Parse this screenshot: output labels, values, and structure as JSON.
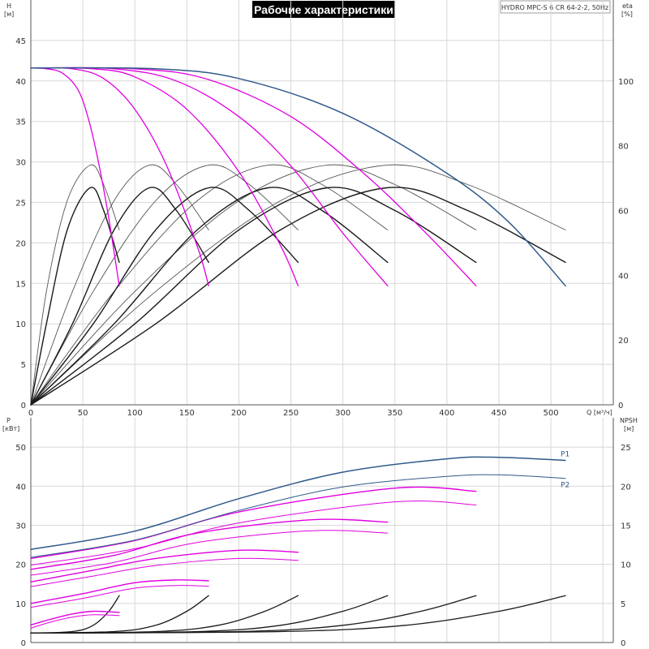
{
  "chart_data": {
    "type": "line",
    "title": "Рабочие характеристики",
    "model": "HYDRO MPC-S 6 CR 64-2-2, 50Hz",
    "colors": {
      "max_curve": "#2e5a8a",
      "speed_curves": "#e000e0",
      "efficiency_curves": "#1a1a1a",
      "efficiency_thin": "#555555",
      "npsh_curves": "#1a1a1a"
    },
    "x_axis": {
      "label": "Q [м³/ч]",
      "range": [
        0,
        560
      ],
      "ticks": [
        0,
        50,
        100,
        150,
        200,
        250,
        300,
        350,
        400,
        450,
        500
      ]
    },
    "head_panel": {
      "y_axis": {
        "label": "H",
        "unit": "[м]",
        "range": [
          0,
          50
        ],
        "ticks": [
          0,
          5,
          10,
          15,
          20,
          25,
          30,
          35,
          40,
          45
        ]
      },
      "eta_axis": {
        "label": "eta",
        "unit": "[%]",
        "range": [
          0,
          125
        ],
        "ticks": [
          0,
          20,
          40,
          60,
          80,
          100
        ]
      },
      "speed_curves": [
        {
          "x": [
            0,
            15,
            30,
            45,
            55,
            65,
            75,
            85
          ],
          "y": [
            41.6,
            41.5,
            41,
            39,
            35.5,
            30,
            23,
            14.7
          ]
        },
        {
          "x": [
            0,
            40,
            70,
            100,
            130,
            160,
            171
          ],
          "y": [
            41.6,
            41.5,
            40.3,
            36.5,
            29.7,
            19.6,
            14.7
          ]
        },
        {
          "x": [
            0,
            60,
            100,
            150,
            200,
            240,
            257
          ],
          "y": [
            41.6,
            41.5,
            40.5,
            36.5,
            28.8,
            19.7,
            14.7
          ]
        },
        {
          "x": [
            0,
            80,
            140,
            200,
            250,
            300,
            343
          ],
          "y": [
            41.6,
            41.5,
            40,
            35.6,
            29.5,
            21.2,
            14.7
          ]
        },
        {
          "x": [
            0,
            100,
            170,
            250,
            320,
            380,
            428
          ],
          "y": [
            41.6,
            41.5,
            40.2,
            35.6,
            28.6,
            21.2,
            14.7
          ]
        }
      ],
      "max_curve": {
        "x": [
          0,
          120,
          200,
          300,
          400,
          460,
          514
        ],
        "y": [
          41.6,
          41.5,
          40.3,
          36,
          28.6,
          22.5,
          14.7
        ]
      },
      "efficiency_bold": [
        {
          "x": [
            0,
            15,
            35,
            57,
            70,
            85
          ],
          "eta": [
            0,
            25,
            54,
            67,
            60,
            44
          ]
        },
        {
          "x": [
            0,
            40,
            80,
            114,
            140,
            171
          ],
          "eta": [
            0,
            25,
            54,
            67,
            60,
            44
          ]
        },
        {
          "x": [
            0,
            60,
            120,
            171,
            210,
            257
          ],
          "eta": [
            0,
            25,
            54,
            67,
            60,
            44
          ]
        },
        {
          "x": [
            0,
            80,
            160,
            228,
            280,
            343
          ],
          "eta": [
            0,
            25,
            54,
            67,
            60,
            44
          ]
        },
        {
          "x": [
            0,
            100,
            200,
            285,
            350,
            428
          ],
          "eta": [
            0,
            25,
            54,
            67,
            60,
            44
          ]
        },
        {
          "x": [
            0,
            120,
            240,
            342,
            420,
            514
          ],
          "eta": [
            0,
            25,
            54,
            67,
            60,
            44
          ]
        }
      ],
      "efficiency_thin": [
        {
          "x": [
            0,
            15,
            35,
            57,
            70,
            85
          ],
          "eta": [
            0,
            35,
            63,
            74,
            68,
            54
          ]
        },
        {
          "x": [
            0,
            40,
            80,
            114,
            140,
            171
          ],
          "eta": [
            0,
            35,
            63,
            74,
            68,
            54
          ]
        },
        {
          "x": [
            0,
            60,
            120,
            171,
            210,
            257
          ],
          "eta": [
            0,
            35,
            63,
            74,
            68,
            54
          ]
        },
        {
          "x": [
            0,
            80,
            160,
            228,
            280,
            343
          ],
          "eta": [
            0,
            35,
            63,
            74,
            68,
            54
          ]
        },
        {
          "x": [
            0,
            100,
            200,
            285,
            350,
            428
          ],
          "eta": [
            0,
            35,
            63,
            74,
            68,
            54
          ]
        },
        {
          "x": [
            0,
            120,
            240,
            342,
            420,
            514
          ],
          "eta": [
            0,
            35,
            63,
            74,
            68,
            54
          ]
        }
      ]
    },
    "power_panel": {
      "y_axis": {
        "label": "P",
        "unit": "[кВт]",
        "range": [
          0,
          57.5
        ],
        "ticks": [
          0,
          10,
          20,
          30,
          40,
          50
        ]
      },
      "npsh_axis": {
        "label": "NPSH",
        "unit": "[м]",
        "range": [
          0,
          28.75
        ],
        "ticks": [
          0,
          5,
          10,
          15,
          20,
          25
        ]
      },
      "p1_label": "P1",
      "p2_label": "P2",
      "P1": {
        "x": [
          0,
          100,
          200,
          300,
          400,
          450,
          514
        ],
        "y": [
          23.8,
          28.5,
          36.8,
          43.6,
          47,
          47.4,
          46.6
        ]
      },
      "P2": {
        "x": [
          0,
          100,
          200,
          300,
          400,
          450,
          514
        ],
        "y": [
          21.8,
          26.2,
          33.8,
          39.8,
          42.5,
          42.9,
          42
        ]
      },
      "speed_P1": [
        {
          "x": [
            0,
            20,
            40,
            60,
            85
          ],
          "y": [
            4.5,
            6,
            7.3,
            8,
            7.7
          ]
        },
        {
          "x": [
            0,
            50,
            100,
            140,
            171
          ],
          "y": [
            10,
            12.5,
            15.3,
            16,
            15.8
          ]
        },
        {
          "x": [
            0,
            60,
            120,
            200,
            257
          ],
          "y": [
            15.5,
            18.5,
            21.5,
            23.6,
            23.1
          ]
        },
        {
          "x": [
            0,
            80,
            160,
            270,
            343
          ],
          "y": [
            18.7,
            22.3,
            28,
            31.4,
            30.8
          ]
        },
        {
          "x": [
            0,
            100,
            200,
            350,
            428
          ],
          "y": [
            21.5,
            26.1,
            33.4,
            39.5,
            38.7
          ]
        }
      ],
      "speed_P2": [
        {
          "x": [
            0,
            20,
            40,
            60,
            85
          ],
          "y": [
            3.7,
            5.3,
            6.5,
            7.1,
            6.9
          ]
        },
        {
          "x": [
            0,
            50,
            100,
            140,
            171
          ],
          "y": [
            9,
            11.3,
            13.9,
            14.6,
            14.4
          ]
        },
        {
          "x": [
            0,
            60,
            120,
            200,
            257
          ],
          "y": [
            14.3,
            17,
            19.7,
            21.5,
            21
          ]
        },
        {
          "x": [
            0,
            80,
            160,
            270,
            343
          ],
          "y": [
            17.2,
            20.5,
            25.6,
            28.6,
            28
          ]
        },
        {
          "x": [
            0,
            100,
            200,
            350,
            428
          ],
          "y": [
            19.8,
            24,
            30.6,
            36,
            35.2
          ]
        }
      ],
      "npsh_curves": [
        {
          "x": [
            0,
            40,
            60,
            75,
            85
          ],
          "y": [
            1.2,
            1.4,
            2.2,
            4,
            6
          ]
        },
        {
          "x": [
            0,
            80,
            120,
            150,
            171
          ],
          "y": [
            1.2,
            1.4,
            2.2,
            4,
            6
          ]
        },
        {
          "x": [
            0,
            120,
            180,
            225,
            257
          ],
          "y": [
            1.2,
            1.4,
            2.2,
            4,
            6
          ]
        },
        {
          "x": [
            0,
            160,
            240,
            300,
            343
          ],
          "y": [
            1.2,
            1.4,
            2.2,
            4,
            6
          ]
        },
        {
          "x": [
            0,
            200,
            300,
            375,
            428
          ],
          "y": [
            1.2,
            1.4,
            2.2,
            4,
            6
          ]
        },
        {
          "x": [
            0,
            240,
            360,
            450,
            514
          ],
          "y": [
            1.2,
            1.4,
            2.2,
            4,
            6
          ]
        }
      ]
    }
  }
}
